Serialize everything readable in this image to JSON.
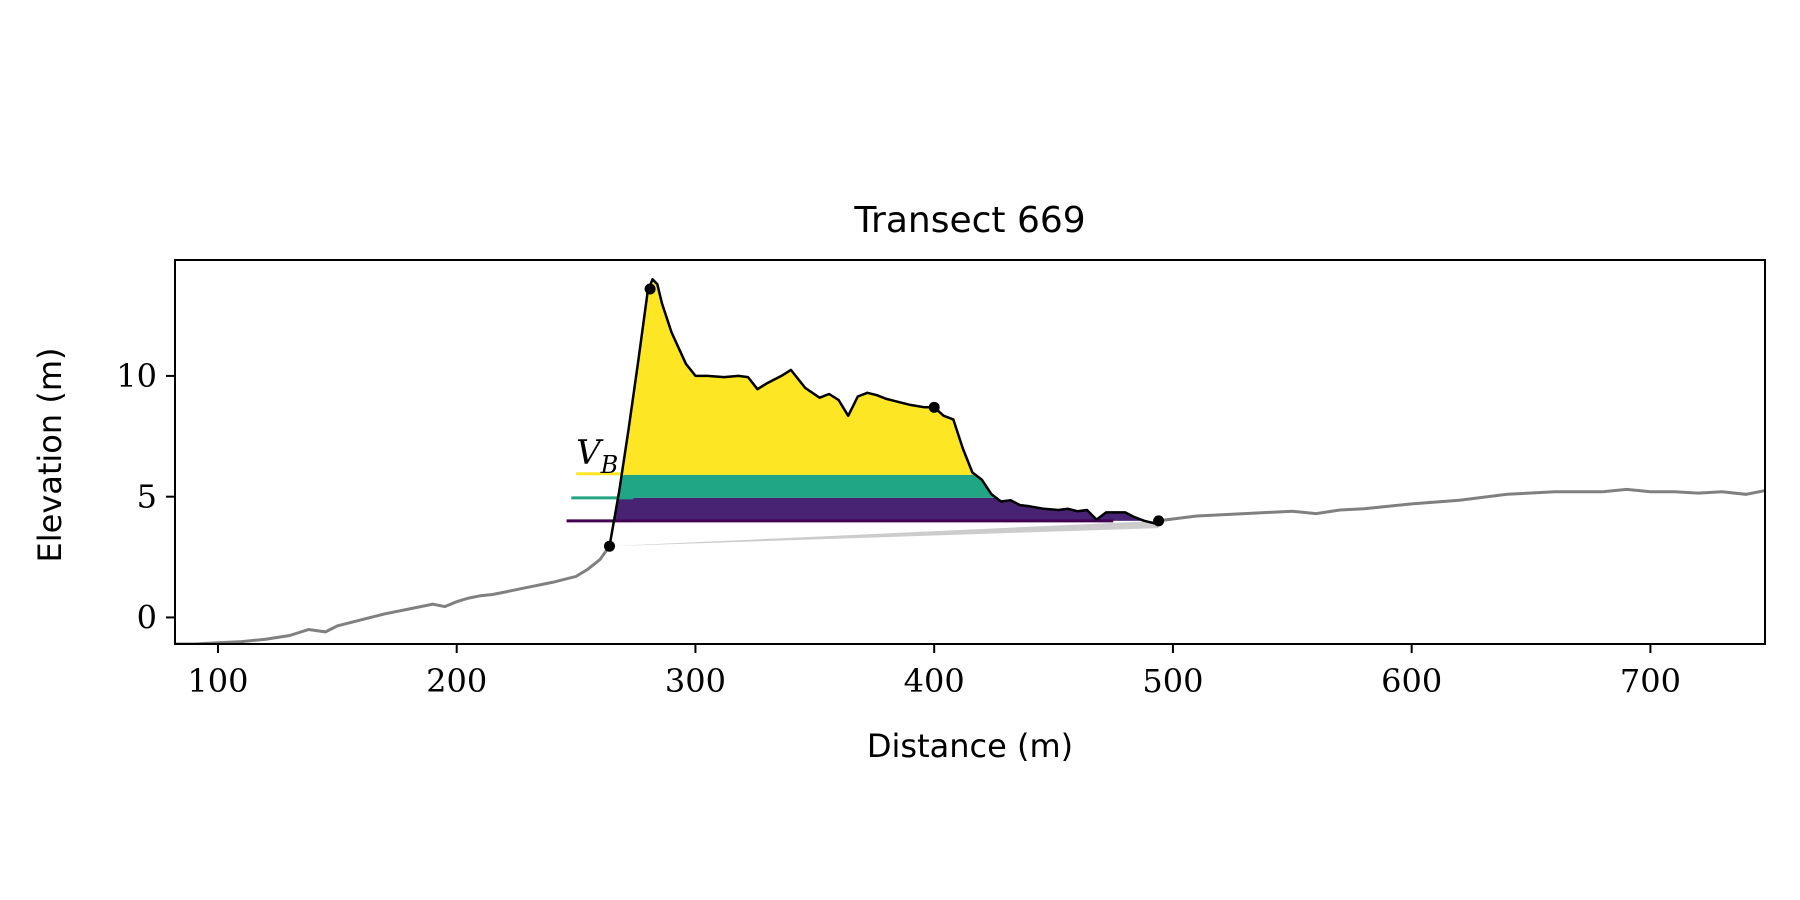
{
  "chart_data": {
    "type": "line",
    "title": "Transect 669",
    "xlabel": "Distance (m)",
    "ylabel": "Elevation (m)",
    "xlim": [
      82,
      748
    ],
    "ylim": [
      -1.1,
      14.8
    ],
    "xticks": [
      {
        "value": 100,
        "label": "100"
      },
      {
        "value": 200,
        "label": "200"
      },
      {
        "value": 300,
        "label": "300"
      },
      {
        "value": 400,
        "label": "400"
      },
      {
        "value": 500,
        "label": "500"
      },
      {
        "value": 600,
        "label": "600"
      },
      {
        "value": 700,
        "label": "700"
      }
    ],
    "yticks": [
      {
        "value": 0,
        "label": "0"
      },
      {
        "value": 5,
        "label": "5"
      },
      {
        "value": 10,
        "label": "10"
      }
    ],
    "grid": false,
    "colors": {
      "profile": "#808080",
      "dune": "#000000",
      "wedge": "#cccccc",
      "yellow": "#fde725",
      "teal": "#21a685",
      "purple": "#482374",
      "dark_purple": "#440154",
      "marker": "#000000"
    },
    "profile": {
      "x": [
        82,
        90,
        100,
        110,
        120,
        130,
        138,
        145,
        150,
        160,
        170,
        180,
        190,
        195,
        200,
        205,
        210,
        215,
        220,
        230,
        240,
        250,
        255,
        260,
        264
      ],
      "y": [
        -1.1,
        -1.1,
        -1.05,
        -1.0,
        -0.9,
        -0.75,
        -0.5,
        -0.6,
        -0.35,
        -0.1,
        0.15,
        0.35,
        0.55,
        0.45,
        0.65,
        0.8,
        0.9,
        0.95,
        1.05,
        1.25,
        1.45,
        1.7,
        2.0,
        2.4,
        2.95
      ]
    },
    "profile_right": {
      "x": [
        494,
        510,
        530,
        550,
        560,
        570,
        580,
        600,
        620,
        640,
        660,
        680,
        690,
        700,
        710,
        720,
        730,
        740,
        748
      ],
      "y": [
        4.0,
        4.2,
        4.3,
        4.4,
        4.3,
        4.45,
        4.5,
        4.7,
        4.85,
        5.1,
        5.2,
        5.2,
        5.3,
        5.2,
        5.2,
        5.15,
        5.2,
        5.1,
        5.25
      ]
    },
    "dune": {
      "x": [
        264,
        268,
        272,
        276,
        280,
        282,
        284,
        286,
        290,
        296,
        300,
        305,
        312,
        318,
        322,
        326,
        330,
        336,
        340,
        346,
        352,
        356,
        360,
        364,
        368,
        372,
        376,
        380,
        384,
        390,
        396,
        400,
        404,
        408,
        412,
        416,
        420,
        424,
        428,
        432,
        436,
        440,
        446,
        452,
        456,
        460,
        464,
        468,
        472,
        476,
        480,
        484,
        488,
        492,
        494
      ],
      "y": [
        2.95,
        5.2,
        7.8,
        10.6,
        13.5,
        14.0,
        13.8,
        13.0,
        11.8,
        10.5,
        10.0,
        10.0,
        9.95,
        10.0,
        9.95,
        9.45,
        9.7,
        10.0,
        10.25,
        9.5,
        9.1,
        9.25,
        9.0,
        8.35,
        9.15,
        9.3,
        9.2,
        9.05,
        8.95,
        8.8,
        8.7,
        8.7,
        8.35,
        8.2,
        7.0,
        6.0,
        5.7,
        5.1,
        4.8,
        4.85,
        4.65,
        4.6,
        4.5,
        4.45,
        4.5,
        4.4,
        4.45,
        4.05,
        4.35,
        4.35,
        4.35,
        4.15,
        4.0,
        3.9,
        4.0
      ]
    },
    "wedge": {
      "x": [
        264,
        494,
        494,
        264
      ],
      "y": [
        2.95,
        4.0,
        3.7,
        2.95
      ]
    },
    "bands": [
      {
        "name": "yellow",
        "y_low": 5.9,
        "fill_to_crest": true
      },
      {
        "name": "teal",
        "y_low": 4.95,
        "y_high": 5.9
      },
      {
        "name": "purple",
        "y_low": 4.0,
        "y_high": 4.95
      }
    ],
    "legend_lines": [
      {
        "color": "yellow",
        "x0": 250,
        "x1": 270,
        "y": 5.95
      },
      {
        "color": "teal",
        "x0": 248,
        "x1": 274,
        "y": 4.95
      },
      {
        "color": "dark_purple",
        "x0": 246,
        "x1": 475,
        "y": 4.0
      }
    ],
    "points": [
      {
        "x": 264,
        "y": 2.95
      },
      {
        "x": 281,
        "y": 13.6
      },
      {
        "x": 400,
        "y": 8.7
      },
      {
        "x": 494,
        "y": 4.0
      }
    ],
    "annotation": {
      "text_main": "V",
      "text_sub": "B",
      "x": 250,
      "y": 6.35
    }
  }
}
